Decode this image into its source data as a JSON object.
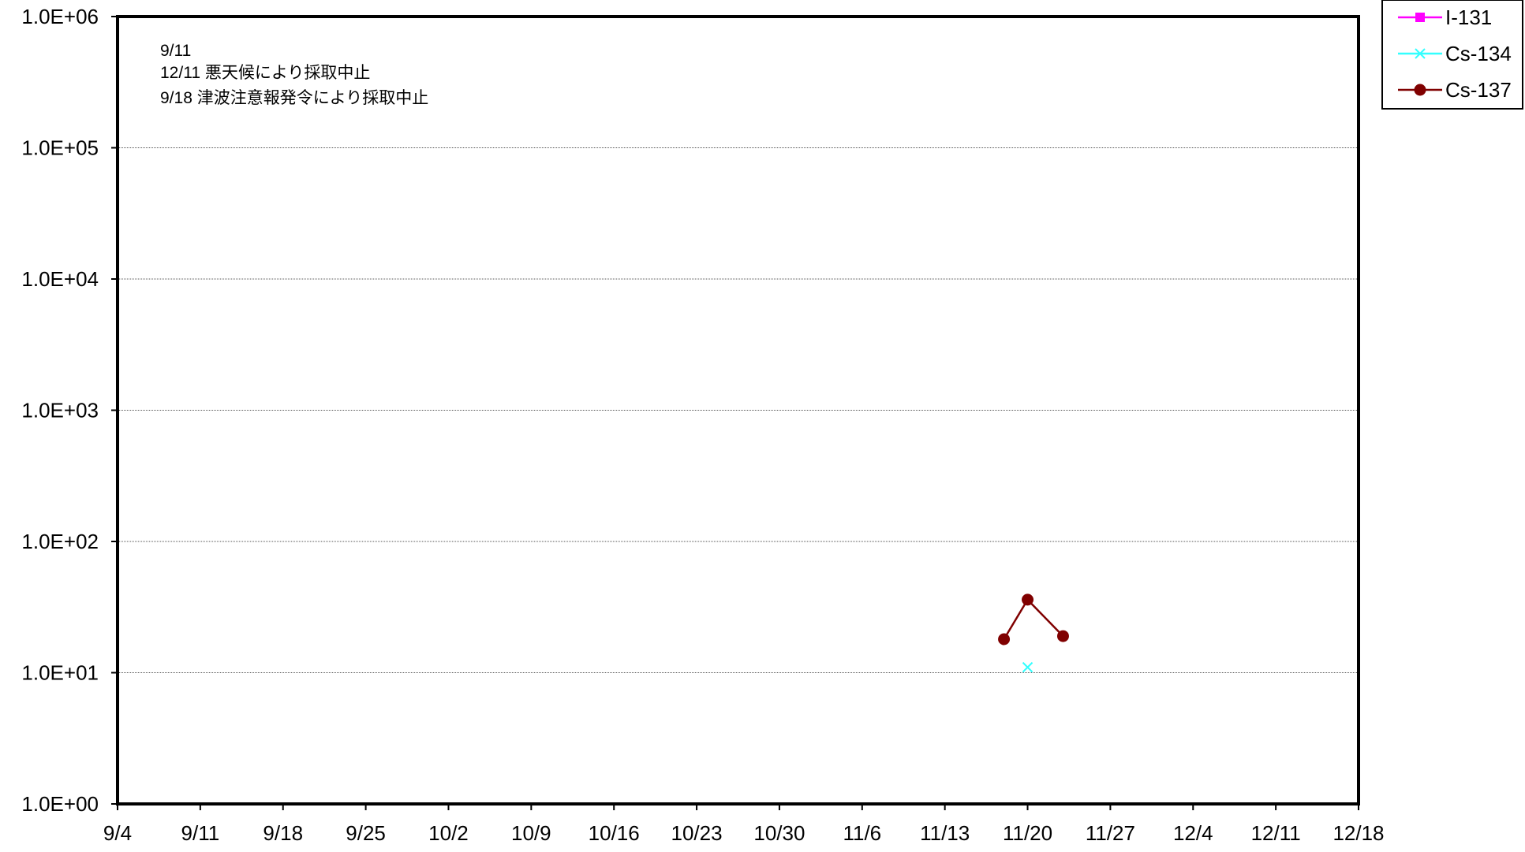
{
  "chart_data": {
    "type": "line",
    "title": "",
    "xlabel": "",
    "ylabel": "",
    "y_scale": "log",
    "ylim": [
      1,
      1000000
    ],
    "y_ticks": [
      1,
      10,
      100,
      1000,
      10000,
      100000,
      1000000
    ],
    "y_tick_labels": [
      "1.0E+00",
      "1.0E+01",
      "1.0E+02",
      "1.0E+03",
      "1.0E+04",
      "1.0E+05",
      "1.0E+06"
    ],
    "xlim": [
      "9/4",
      "12/18"
    ],
    "x_tick_labels": [
      "9/4",
      "9/11",
      "9/18",
      "9/25",
      "10/2",
      "10/9",
      "10/16",
      "10/23",
      "10/30",
      "11/6",
      "11/13",
      "11/20",
      "11/27",
      "12/4",
      "12/11",
      "12/18"
    ],
    "grid": "horizontal",
    "legend_position": "top-right",
    "annotations": [
      "9/11",
      "12/11 悪天候により採取中止",
      "9/18 津波注意報発令により採取中止"
    ],
    "series": [
      {
        "name": "I-131",
        "color": "#ff00ff",
        "marker": "square",
        "points": []
      },
      {
        "name": "Cs-134",
        "color": "#33ffff",
        "marker": "x",
        "points": [
          {
            "x": "11/20",
            "y": 11
          }
        ]
      },
      {
        "name": "Cs-137",
        "color": "#800000",
        "marker": "circle",
        "points": [
          {
            "x": "11/18",
            "y": 18
          },
          {
            "x": "11/20",
            "y": 36
          },
          {
            "x": "11/23",
            "y": 19
          }
        ]
      }
    ]
  }
}
